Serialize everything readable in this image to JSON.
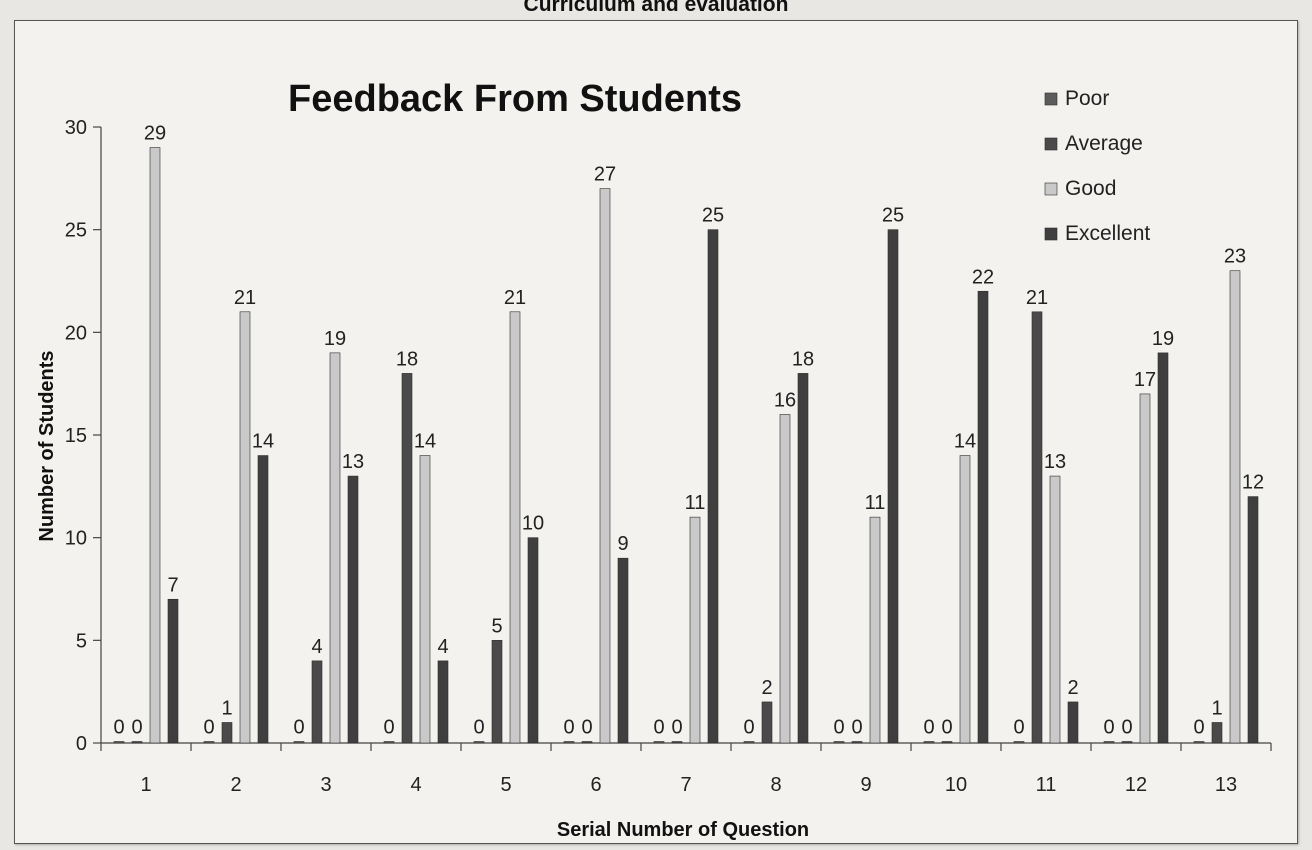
{
  "page": {
    "header_text": "Curriculum and evaluation"
  },
  "chart_data": {
    "type": "bar",
    "title": "Feedback From Students",
    "xlabel": "Serial  Number of Question",
    "ylabel": "Number of Students",
    "ylim": [
      0,
      30
    ],
    "yticks": [
      0,
      5,
      10,
      15,
      20,
      25,
      30
    ],
    "categories": [
      "1",
      "2",
      "3",
      "4",
      "5",
      "6",
      "7",
      "8",
      "9",
      "10",
      "11",
      "12",
      "13"
    ],
    "legend_position": "top-right",
    "grid": false,
    "series": [
      {
        "name": "Poor",
        "color": "#5c5c5c",
        "values": [
          0,
          0,
          0,
          0,
          0,
          0,
          0,
          0,
          0,
          0,
          0,
          0,
          0
        ]
      },
      {
        "name": "Average",
        "color": "#4a4a4a",
        "values": [
          0,
          1,
          4,
          18,
          5,
          0,
          0,
          2,
          0,
          0,
          21,
          0,
          1
        ]
      },
      {
        "name": "Good",
        "color": "#c9c9c9",
        "values": [
          29,
          21,
          19,
          14,
          21,
          27,
          11,
          16,
          11,
          14,
          13,
          17,
          23
        ]
      },
      {
        "name": "Excellent",
        "color": "#3f3f3f",
        "values": [
          7,
          14,
          13,
          4,
          10,
          9,
          25,
          18,
          25,
          22,
          2,
          19,
          12
        ]
      }
    ]
  }
}
